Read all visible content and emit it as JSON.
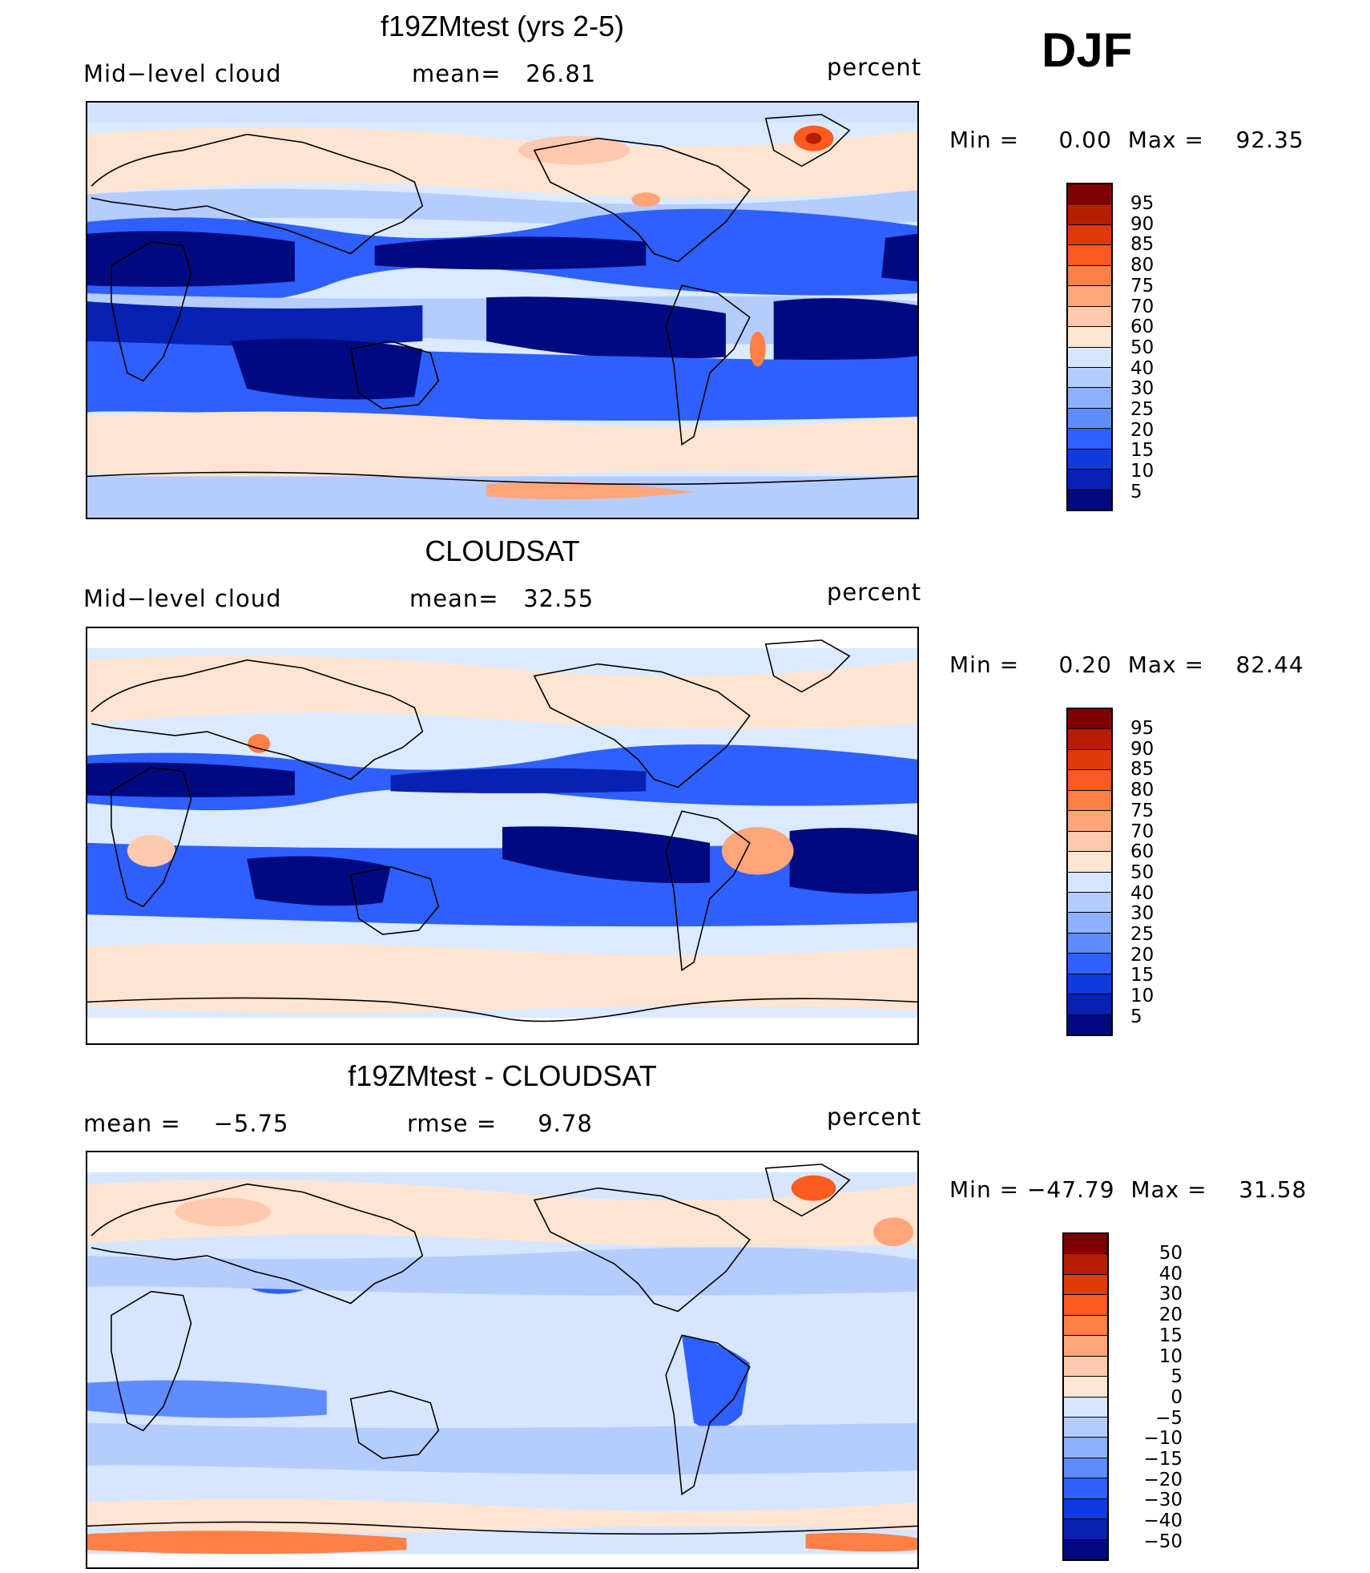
{
  "season": "DJF",
  "panels": [
    {
      "title": "f19ZMtest (yrs 2-5)",
      "left_label": "Mid−level cloud",
      "center_label": "mean=   26.81",
      "right_label": "percent",
      "minmax": "Min =     0.00  Max =    92.35",
      "colorbar": {
        "labels": [
          "95",
          "90",
          "85",
          "80",
          "75",
          "70",
          "60",
          "50",
          "40",
          "30",
          "25",
          "20",
          "15",
          "10",
          "5"
        ],
        "colors": [
          "#800000",
          "#b51e00",
          "#e03a0a",
          "#ff5a1f",
          "#ff7f45",
          "#ffa57a",
          "#ffc9ad",
          "#ffe6d2",
          "#d6e6ff",
          "#b5ccff",
          "#8eb1ff",
          "#5f8cff",
          "#2e60ff",
          "#0f3ae0",
          "#0722b0",
          "#000a80"
        ]
      }
    },
    {
      "title": "CLOUDSAT",
      "left_label": "Mid−level cloud",
      "center_label": "mean=   32.55",
      "right_label": "percent",
      "minmax": "Min =     0.20  Max =    82.44",
      "colorbar": {
        "labels": [
          "95",
          "90",
          "85",
          "80",
          "75",
          "70",
          "60",
          "50",
          "40",
          "30",
          "25",
          "20",
          "15",
          "10",
          "5"
        ],
        "colors": [
          "#800000",
          "#b51e00",
          "#e03a0a",
          "#ff5a1f",
          "#ff7f45",
          "#ffa57a",
          "#ffc9ad",
          "#ffe6d2",
          "#d6e6ff",
          "#b5ccff",
          "#8eb1ff",
          "#5f8cff",
          "#2e60ff",
          "#0f3ae0",
          "#0722b0",
          "#000a80"
        ]
      }
    },
    {
      "title": "f19ZMtest - CLOUDSAT",
      "left_label": "mean =    −5.75",
      "center_label": "rmse =     9.78",
      "right_label": "percent",
      "minmax": "Min = −47.79  Max =    31.58",
      "colorbar": {
        "labels": [
          "50",
          "40",
          "30",
          "20",
          "15",
          "10",
          "5",
          "0",
          "−5",
          "−10",
          "−15",
          "−20",
          "−30",
          "−40",
          "−50"
        ],
        "colors": [
          "#800000",
          "#b51e00",
          "#e03a0a",
          "#ff5a1f",
          "#ff7f45",
          "#ffa57a",
          "#ffc9ad",
          "#ffe6d2",
          "#d6e6ff",
          "#b5ccff",
          "#8eb1ff",
          "#5f8cff",
          "#2e60ff",
          "#0f3ae0",
          "#0722b0",
          "#000a80"
        ]
      }
    }
  ]
}
